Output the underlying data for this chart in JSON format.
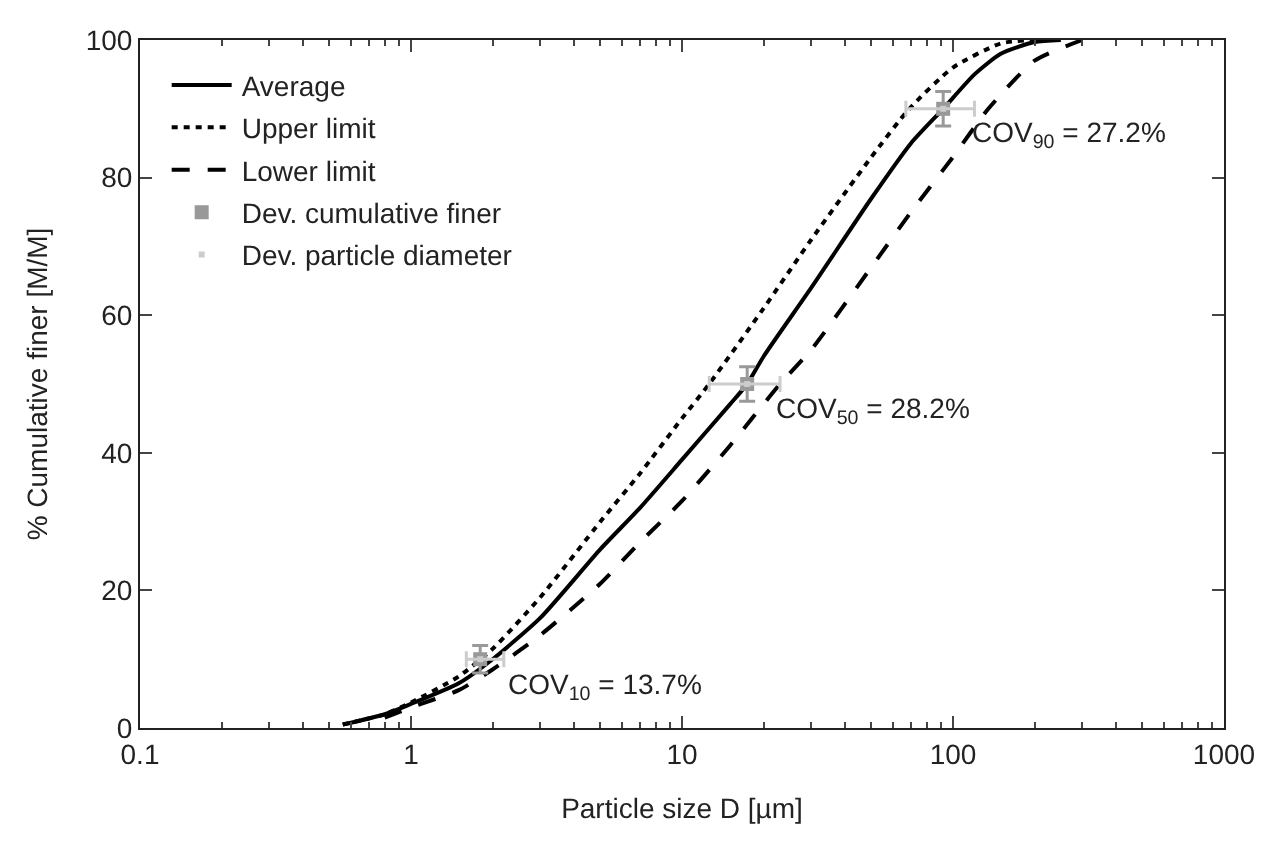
{
  "chart_data": {
    "type": "line",
    "xlabel": "Particle size D [µm]",
    "ylabel": "% Cumulative finer [M/M]",
    "log": "x",
    "xlim": [
      0.1,
      1000
    ],
    "xticks": [
      0.1,
      1,
      10,
      100,
      1000
    ],
    "ylim": [
      0,
      100
    ],
    "yticks": [
      0,
      20,
      40,
      60,
      80,
      100
    ],
    "legend": "top left",
    "marker": "none",
    "series": [
      {
        "name": "Average",
        "color": "#000000",
        "line_style": "solid",
        "x": [
          0.56,
          0.8,
          1,
          1.5,
          2,
          3,
          5,
          7,
          10,
          15,
          17.4,
          20,
          30,
          50,
          70,
          92,
          120,
          150,
          200,
          250
        ],
        "values": [
          0.5,
          2,
          3.5,
          6.5,
          10,
          16,
          26,
          32,
          39,
          47,
          50,
          54,
          64,
          77,
          85,
          90,
          95,
          98,
          99.7,
          100
        ]
      },
      {
        "name": "Upper limit",
        "color": "#000000",
        "line_style": "dotted",
        "x": [
          0.56,
          0.8,
          1,
          1.5,
          2,
          3,
          5,
          7,
          10,
          12.6,
          20,
          30,
          50,
          69,
          100,
          150,
          200
        ],
        "values": [
          0.5,
          2,
          3.7,
          7.5,
          11.5,
          19,
          30,
          37,
          45,
          50,
          61,
          71,
          83,
          90,
          96,
          99.5,
          100
        ]
      },
      {
        "name": "Lower limit",
        "color": "#000000",
        "line_style": "dashed",
        "x": [
          0.8,
          1,
          1.5,
          2,
          3,
          5,
          7,
          10,
          15,
          23,
          30,
          50,
          70,
          100,
          135,
          200,
          300
        ],
        "values": [
          1.5,
          3,
          5.5,
          8.5,
          13.5,
          21,
          27,
          33,
          41,
          50,
          55,
          67,
          75,
          83,
          90,
          97,
          100
        ]
      },
      {
        "name": "Dev. cumulative finer",
        "type": "scatter",
        "marker": "square",
        "color": "#999999",
        "x": [
          1.8,
          17.4,
          92
        ],
        "values": [
          10,
          50,
          90
        ],
        "errors": [
          2,
          2.5,
          2.5
        ]
      },
      {
        "name": "Dev. particle diameter",
        "type": "scatter",
        "marker": "square",
        "color": "#cccccc",
        "x": [
          1.8,
          17.4,
          92
        ],
        "values": [
          10,
          50,
          90
        ],
        "xerrors": [
          [
            1.6,
            2.2
          ],
          [
            12.6,
            23
          ],
          [
            67,
            120
          ]
        ]
      }
    ],
    "annotations": [
      {
        "text": "COV$_{10}$ = 13.7%",
        "x": 1.8,
        "y": 10
      },
      {
        "text": "COV$_{50}$ = 28.2%",
        "x": 17.4,
        "y": 50
      },
      {
        "text": "COV$_{90}$ = 27.2%",
        "x": 92,
        "y": 90
      }
    ]
  }
}
